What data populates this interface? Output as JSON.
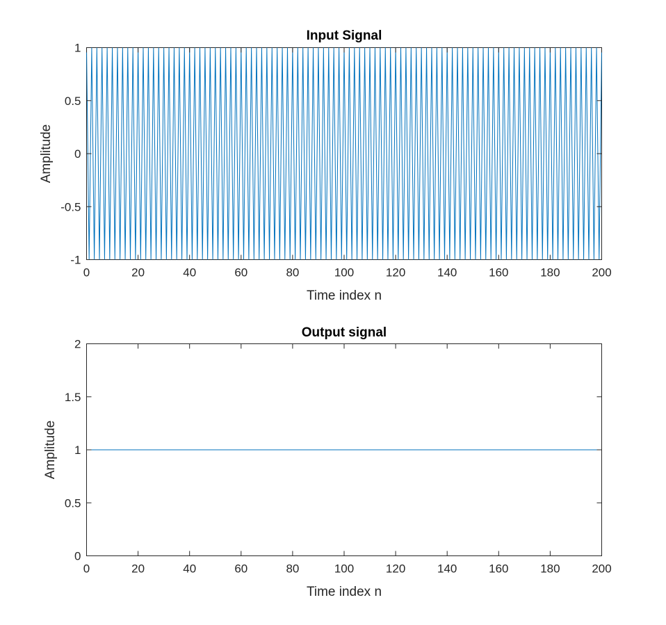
{
  "chart_data": [
    {
      "type": "line",
      "title": "Input Signal",
      "xlabel": "Time index n",
      "ylabel": "Amplitude",
      "xlim": [
        0,
        200
      ],
      "ylim": [
        -1,
        1
      ],
      "xticks": [
        0,
        20,
        40,
        60,
        80,
        100,
        120,
        140,
        160,
        180,
        200
      ],
      "yticks": [
        -1,
        -0.5,
        0,
        0.5,
        1
      ],
      "xtick_labels": [
        "0",
        "20",
        "40",
        "60",
        "80",
        "100",
        "120",
        "140",
        "160",
        "180",
        "200"
      ],
      "ytick_labels": [
        "-1",
        "-0.5",
        "0",
        "0.5",
        "1"
      ],
      "grid": false,
      "series": [
        {
          "signal": "alternating",
          "description": "values alternate between 1 and -1 at each time index n = 0..200",
          "x_start": 0,
          "x_end": 200,
          "x_step": 1,
          "values_pattern": [
            1,
            -1
          ],
          "color": "#0072BD"
        }
      ]
    },
    {
      "type": "line",
      "title": "Output signal",
      "xlabel": "Time index n",
      "ylabel": "Amplitude",
      "xlim": [
        0,
        200
      ],
      "ylim": [
        0,
        2
      ],
      "xticks": [
        0,
        20,
        40,
        60,
        80,
        100,
        120,
        140,
        160,
        180,
        200
      ],
      "yticks": [
        0,
        0.5,
        1,
        1.5,
        2
      ],
      "xtick_labels": [
        "0",
        "20",
        "40",
        "60",
        "80",
        "100",
        "120",
        "140",
        "160",
        "180",
        "200"
      ],
      "ytick_labels": [
        "0",
        "0.5",
        "1",
        "1.5",
        "2"
      ],
      "grid": false,
      "series": [
        {
          "signal": "constant",
          "x": [
            0,
            200
          ],
          "values": [
            1,
            1
          ],
          "color": "#0072BD"
        }
      ]
    }
  ]
}
